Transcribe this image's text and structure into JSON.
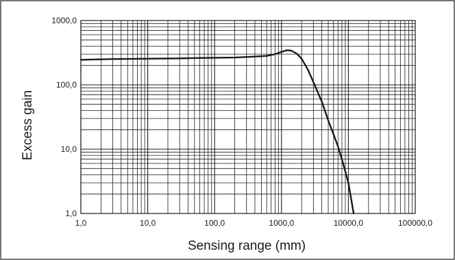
{
  "chart_data": {
    "type": "line",
    "title": "",
    "xlabel": "Sensing range (mm)",
    "ylabel": "Excess gain",
    "x_scale": "log",
    "y_scale": "log",
    "xlim": [
      1,
      100000
    ],
    "ylim": [
      1,
      1000
    ],
    "grid": true,
    "legend": "none",
    "x_ticks": [
      {
        "value": 1,
        "label": "1,0"
      },
      {
        "value": 10,
        "label": "10,0"
      },
      {
        "value": 100,
        "label": "100,0"
      },
      {
        "value": 1000,
        "label": "1000,0"
      },
      {
        "value": 10000,
        "label": "10000,0"
      },
      {
        "value": 100000,
        "label": "100000,0"
      }
    ],
    "y_ticks": [
      {
        "value": 1,
        "label": "1,0"
      },
      {
        "value": 10,
        "label": "10,0"
      },
      {
        "value": 100,
        "label": "100,0"
      },
      {
        "value": 1000,
        "label": "1000,0"
      }
    ],
    "series": [
      {
        "color": "#1a1a1a",
        "points": [
          {
            "x": 1,
            "y": 245
          },
          {
            "x": 3,
            "y": 252
          },
          {
            "x": 10,
            "y": 255
          },
          {
            "x": 30,
            "y": 258
          },
          {
            "x": 60,
            "y": 262
          },
          {
            "x": 100,
            "y": 264
          },
          {
            "x": 200,
            "y": 266
          },
          {
            "x": 400,
            "y": 275
          },
          {
            "x": 600,
            "y": 282
          },
          {
            "x": 800,
            "y": 300
          },
          {
            "x": 1000,
            "y": 325
          },
          {
            "x": 1200,
            "y": 345
          },
          {
            "x": 1400,
            "y": 340
          },
          {
            "x": 1700,
            "y": 305
          },
          {
            "x": 2000,
            "y": 255
          },
          {
            "x": 2500,
            "y": 170
          },
          {
            "x": 3000,
            "y": 110
          },
          {
            "x": 4000,
            "y": 55
          },
          {
            "x": 5000,
            "y": 28
          },
          {
            "x": 6000,
            "y": 17
          },
          {
            "x": 7000,
            "y": 11
          },
          {
            "x": 8000,
            "y": 7
          },
          {
            "x": 9000,
            "y": 4.5
          },
          {
            "x": 10000,
            "y": 3
          },
          {
            "x": 11000,
            "y": 1.7
          },
          {
            "x": 12000,
            "y": 1
          }
        ]
      }
    ]
  }
}
